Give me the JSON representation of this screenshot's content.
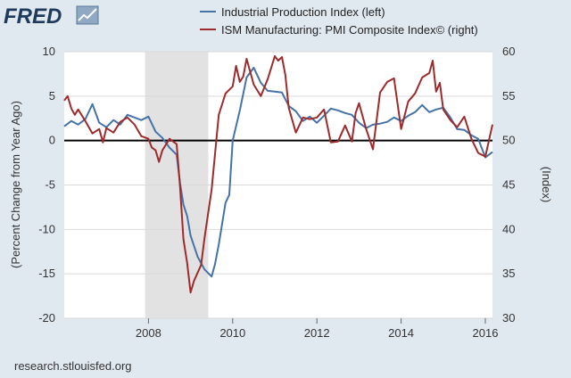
{
  "brand": {
    "name": "FRED",
    "logo_icon": "trend-chart-icon"
  },
  "source": "research.stlouisfed.org",
  "chart_data": {
    "type": "line",
    "title": "",
    "ylabel_left": "(Percent Change from Year Ago)",
    "ylabel_right": "(Index)",
    "y_left": {
      "range": [
        -20,
        10
      ],
      "ticks": [
        -20,
        -15,
        -10,
        -5,
        0,
        5,
        10
      ],
      "tick_labels": [
        "-20",
        "-15",
        "-10",
        "-5",
        "0",
        "5",
        "10"
      ]
    },
    "y_right": {
      "range": [
        30,
        60
      ],
      "ticks": [
        30,
        35,
        40,
        45,
        50,
        55,
        60
      ],
      "tick_labels": [
        "30",
        "35",
        "40",
        "45",
        "50",
        "55",
        "60"
      ]
    },
    "x_range": [
      2006.0,
      2016.17
    ],
    "x_ticks": [
      2008,
      2010,
      2012,
      2014,
      2016
    ],
    "x_tick_labels": [
      "2008",
      "2010",
      "2012",
      "2014",
      "2016"
    ],
    "recession": {
      "start": 2007.92,
      "end": 2009.42,
      "color": "#e2e2e2"
    },
    "zero_line": 0,
    "grid": "horizontal",
    "series": [
      {
        "name": "Industrial Production Index (left)",
        "axis": "left",
        "color": "#4572a7",
        "points": [
          [
            2006.0,
            1.6
          ],
          [
            2006.17,
            2.2
          ],
          [
            2006.33,
            1.8
          ],
          [
            2006.5,
            2.4
          ],
          [
            2006.67,
            4.1
          ],
          [
            2006.83,
            2.0
          ],
          [
            2007.0,
            1.5
          ],
          [
            2007.17,
            2.3
          ],
          [
            2007.33,
            1.8
          ],
          [
            2007.5,
            2.9
          ],
          [
            2007.67,
            2.6
          ],
          [
            2007.83,
            2.3
          ],
          [
            2008.0,
            2.7
          ],
          [
            2008.17,
            1.0
          ],
          [
            2008.33,
            0.3
          ],
          [
            2008.5,
            -0.8
          ],
          [
            2008.67,
            -1.6
          ],
          [
            2008.75,
            -4.8
          ],
          [
            2008.83,
            -7.2
          ],
          [
            2008.92,
            -8.5
          ],
          [
            2009.0,
            -10.7
          ],
          [
            2009.17,
            -13.1
          ],
          [
            2009.33,
            -14.5
          ],
          [
            2009.5,
            -15.3
          ],
          [
            2009.58,
            -13.9
          ],
          [
            2009.67,
            -11.7
          ],
          [
            2009.83,
            -7.0
          ],
          [
            2009.92,
            -6.1
          ],
          [
            2010.0,
            0.0
          ],
          [
            2010.17,
            3.4
          ],
          [
            2010.33,
            7.1
          ],
          [
            2010.5,
            8.2
          ],
          [
            2010.67,
            6.5
          ],
          [
            2010.83,
            5.6
          ],
          [
            2011.0,
            5.5
          ],
          [
            2011.17,
            5.4
          ],
          [
            2011.33,
            3.9
          ],
          [
            2011.5,
            3.3
          ],
          [
            2011.67,
            2.2
          ],
          [
            2011.83,
            2.7
          ],
          [
            2012.0,
            2.0
          ],
          [
            2012.17,
            2.8
          ],
          [
            2012.33,
            3.6
          ],
          [
            2012.5,
            3.4
          ],
          [
            2012.67,
            3.1
          ],
          [
            2012.83,
            2.9
          ],
          [
            2013.0,
            2.0
          ],
          [
            2013.17,
            1.4
          ],
          [
            2013.33,
            1.8
          ],
          [
            2013.5,
            1.9
          ],
          [
            2013.67,
            2.1
          ],
          [
            2013.83,
            2.6
          ],
          [
            2014.0,
            2.2
          ],
          [
            2014.17,
            2.8
          ],
          [
            2014.33,
            3.2
          ],
          [
            2014.5,
            4.0
          ],
          [
            2014.67,
            3.2
          ],
          [
            2014.83,
            3.5
          ],
          [
            2015.0,
            3.7
          ],
          [
            2015.17,
            2.6
          ],
          [
            2015.33,
            1.3
          ],
          [
            2015.5,
            1.2
          ],
          [
            2015.67,
            0.6
          ],
          [
            2015.83,
            0.2
          ],
          [
            2016.0,
            -1.9
          ],
          [
            2016.17,
            -1.3
          ]
        ]
      },
      {
        "name": "ISM Manufacturing: PMI Composite Index© (right)",
        "axis": "right",
        "color": "#9e2a2b",
        "points": [
          [
            2006.0,
            54.5
          ],
          [
            2006.08,
            55.0
          ],
          [
            2006.17,
            53.6
          ],
          [
            2006.25,
            52.9
          ],
          [
            2006.33,
            53.5
          ],
          [
            2006.5,
            52.2
          ],
          [
            2006.67,
            50.8
          ],
          [
            2006.83,
            51.3
          ],
          [
            2006.92,
            49.8
          ],
          [
            2007.0,
            51.4
          ],
          [
            2007.17,
            50.9
          ],
          [
            2007.33,
            52.1
          ],
          [
            2007.5,
            52.6
          ],
          [
            2007.67,
            51.8
          ],
          [
            2007.83,
            50.5
          ],
          [
            2008.0,
            50.2
          ],
          [
            2008.08,
            49.2
          ],
          [
            2008.17,
            48.9
          ],
          [
            2008.25,
            47.6
          ],
          [
            2008.33,
            48.9
          ],
          [
            2008.5,
            50.2
          ],
          [
            2008.67,
            49.6
          ],
          [
            2008.75,
            44.8
          ],
          [
            2008.83,
            38.9
          ],
          [
            2008.92,
            36.2
          ],
          [
            2009.0,
            32.9
          ],
          [
            2009.08,
            34.2
          ],
          [
            2009.25,
            36.0
          ],
          [
            2009.33,
            39.0
          ],
          [
            2009.5,
            44.5
          ],
          [
            2009.67,
            52.9
          ],
          [
            2009.83,
            55.3
          ],
          [
            2010.0,
            56.1
          ],
          [
            2010.08,
            58.4
          ],
          [
            2010.17,
            56.6
          ],
          [
            2010.25,
            57.2
          ],
          [
            2010.33,
            59.2
          ],
          [
            2010.5,
            56.3
          ],
          [
            2010.67,
            55.0
          ],
          [
            2010.83,
            56.9
          ],
          [
            2011.0,
            59.5
          ],
          [
            2011.08,
            59.0
          ],
          [
            2011.17,
            59.4
          ],
          [
            2011.25,
            57.4
          ],
          [
            2011.33,
            53.7
          ],
          [
            2011.5,
            50.9
          ],
          [
            2011.67,
            52.6
          ],
          [
            2011.83,
            52.4
          ],
          [
            2012.0,
            52.6
          ],
          [
            2012.17,
            53.5
          ],
          [
            2012.33,
            49.8
          ],
          [
            2012.5,
            49.9
          ],
          [
            2012.67,
            51.7
          ],
          [
            2012.83,
            49.9
          ],
          [
            2012.92,
            53.1
          ],
          [
            2013.0,
            54.2
          ],
          [
            2013.17,
            51.3
          ],
          [
            2013.33,
            49.0
          ],
          [
            2013.5,
            55.4
          ],
          [
            2013.67,
            56.6
          ],
          [
            2013.83,
            57.0
          ],
          [
            2014.0,
            51.3
          ],
          [
            2014.17,
            54.4
          ],
          [
            2014.33,
            55.3
          ],
          [
            2014.5,
            57.1
          ],
          [
            2014.67,
            57.6
          ],
          [
            2014.75,
            59.0
          ],
          [
            2014.83,
            55.5
          ],
          [
            2014.92,
            56.5
          ],
          [
            2015.0,
            53.5
          ],
          [
            2015.17,
            52.3
          ],
          [
            2015.33,
            51.5
          ],
          [
            2015.5,
            52.7
          ],
          [
            2015.67,
            50.2
          ],
          [
            2015.83,
            48.6
          ],
          [
            2016.0,
            48.2
          ],
          [
            2016.17,
            51.8
          ]
        ]
      }
    ]
  }
}
